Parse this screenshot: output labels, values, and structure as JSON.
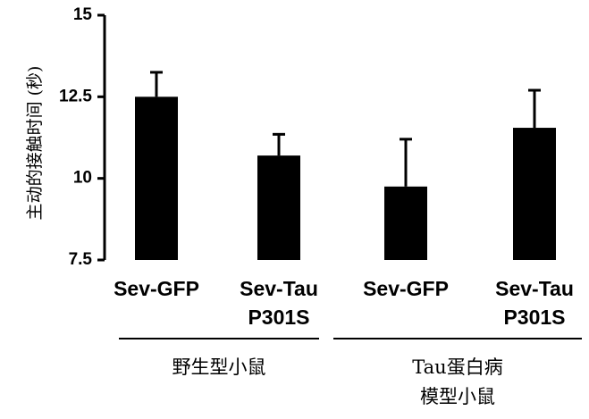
{
  "chart_data": {
    "type": "bar",
    "ylabel": "主动的接触时间 (秒)",
    "ylim": [
      7.5,
      15
    ],
    "yticks": [
      "7.5",
      "10",
      "12.5",
      "15"
    ],
    "categories": [
      [
        "Sev-GFP"
      ],
      [
        "Sev-Tau",
        "P301S"
      ],
      [
        "Sev-GFP"
      ],
      [
        "Sev-Tau",
        "P301S"
      ]
    ],
    "values": [
      12.5,
      10.7,
      9.75,
      11.55
    ],
    "errors": [
      0.75,
      0.65,
      1.45,
      1.15
    ],
    "groups": [
      {
        "label_lines": [
          "野生型小鼠"
        ],
        "categories": [
          0,
          1
        ]
      },
      {
        "label_lines": [
          "Tau蛋白病",
          "模型小鼠"
        ],
        "categories": [
          2,
          3
        ]
      }
    ],
    "colors": {
      "bar": "#000000",
      "axis": "#000000"
    },
    "grid": false
  }
}
